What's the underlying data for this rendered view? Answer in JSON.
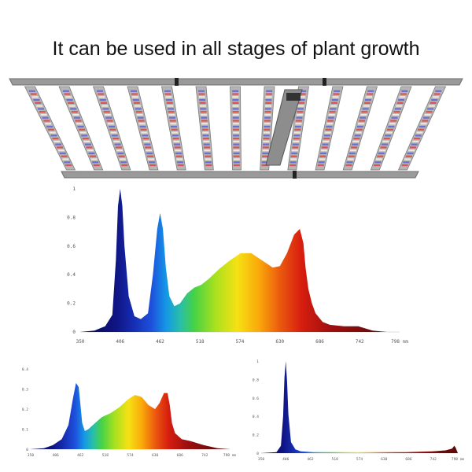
{
  "headline": "It can be used in all stages of plant growth",
  "fixture": {
    "bar_count": 13,
    "colors": {
      "frame": "#9a9a9a",
      "led_red": "#d9544f",
      "led_blue": "#6a6fd6",
      "led_white": "#f1e6dc"
    }
  },
  "chart_data": [
    {
      "type": "area",
      "id": "full-spectrum",
      "x_ticks": [
        "350",
        "406",
        "462",
        "518",
        "574",
        "630",
        "686",
        "742",
        "798 nm"
      ],
      "y_ticks": [
        "0",
        "0.2",
        "0.4",
        "0.6",
        "0.8",
        "1"
      ],
      "xlim": [
        350,
        798
      ],
      "ylim": [
        0,
        1
      ],
      "x": [
        350,
        370,
        385,
        395,
        400,
        403,
        406,
        409,
        412,
        418,
        426,
        435,
        445,
        452,
        458,
        462,
        466,
        470,
        475,
        482,
        490,
        500,
        510,
        520,
        530,
        545,
        560,
        575,
        590,
        605,
        620,
        630,
        640,
        650,
        658,
        663,
        666,
        670,
        675,
        680,
        690,
        700,
        720,
        740,
        760,
        780,
        798
      ],
      "y": [
        0,
        0.01,
        0.04,
        0.12,
        0.5,
        0.88,
        1.0,
        0.88,
        0.6,
        0.25,
        0.11,
        0.09,
        0.13,
        0.4,
        0.72,
        0.83,
        0.72,
        0.45,
        0.25,
        0.18,
        0.2,
        0.27,
        0.31,
        0.33,
        0.37,
        0.44,
        0.5,
        0.55,
        0.55,
        0.5,
        0.45,
        0.46,
        0.55,
        0.68,
        0.72,
        0.62,
        0.45,
        0.3,
        0.2,
        0.13,
        0.07,
        0.05,
        0.04,
        0.04,
        0.01,
        0.0,
        0.0
      ]
    },
    {
      "type": "area",
      "id": "vegetative-spectrum",
      "x_ticks": [
        "350",
        "406",
        "462",
        "518",
        "574",
        "630",
        "686",
        "742",
        "798 nm"
      ],
      "y_ticks": [
        "0",
        "0.1",
        "0.2",
        "0.3",
        "0.4"
      ],
      "xlim": [
        350,
        798
      ],
      "ylim": [
        0,
        0.4
      ],
      "x": [
        350,
        380,
        400,
        420,
        435,
        445,
        452,
        458,
        462,
        466,
        472,
        480,
        495,
        510,
        530,
        550,
        570,
        585,
        600,
        615,
        630,
        640,
        650,
        658,
        663,
        668,
        675,
        690,
        710,
        740,
        770,
        798
      ],
      "y": [
        0,
        0.005,
        0.02,
        0.05,
        0.12,
        0.25,
        0.33,
        0.31,
        0.22,
        0.13,
        0.09,
        0.1,
        0.13,
        0.16,
        0.18,
        0.21,
        0.25,
        0.27,
        0.26,
        0.22,
        0.2,
        0.23,
        0.28,
        0.28,
        0.22,
        0.13,
        0.08,
        0.05,
        0.04,
        0.02,
        0.005,
        0.0
      ]
    },
    {
      "type": "area",
      "id": "blue-spectrum",
      "x_ticks": [
        "350",
        "406",
        "462",
        "518",
        "574",
        "630",
        "686",
        "742",
        "798 nm"
      ],
      "y_ticks": [
        "0",
        "0.2",
        "0.4",
        "0.6",
        "0.8",
        "1"
      ],
      "xlim": [
        350,
        798
      ],
      "ylim": [
        0,
        1
      ],
      "x": [
        350,
        385,
        395,
        400,
        403,
        406,
        409,
        412,
        418,
        428,
        440,
        470,
        520,
        600,
        680,
        740,
        770,
        785,
        790,
        793,
        798
      ],
      "y": [
        0,
        0.01,
        0.08,
        0.4,
        0.82,
        1.0,
        0.78,
        0.42,
        0.12,
        0.04,
        0.02,
        0.01,
        0.01,
        0.01,
        0.01,
        0.02,
        0.03,
        0.05,
        0.08,
        0.06,
        0.0
      ]
    }
  ]
}
